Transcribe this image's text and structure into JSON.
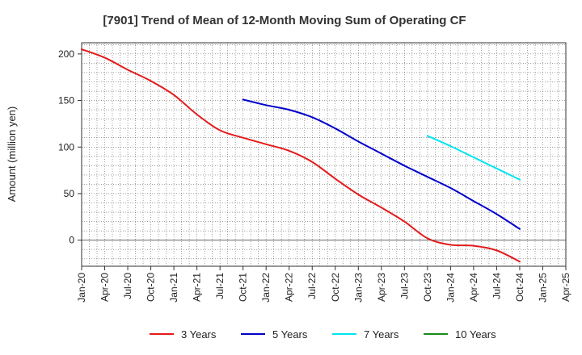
{
  "chart_data": {
    "type": "line",
    "title": "[7901]  Trend of Mean of 12-Month Moving Sum of Operating CF",
    "xlabel": "",
    "ylabel": "Amount (million yen)",
    "ylim": [
      -28,
      212
    ],
    "yticks": [
      0,
      50,
      100,
      150,
      200
    ],
    "x_tick_labels": [
      "Jan-20",
      "Apr-20",
      "Jul-20",
      "Oct-20",
      "Jan-21",
      "Apr-21",
      "Jul-21",
      "Oct-21",
      "Jan-22",
      "Apr-22",
      "Jul-22",
      "Oct-22",
      "Jan-23",
      "Apr-23",
      "Jul-23",
      "Oct-23",
      "Jan-24",
      "Apr-24",
      "Jul-24",
      "Oct-24",
      "Jan-25",
      "Apr-25"
    ],
    "grid": true,
    "legend_position": "bottom",
    "series": [
      {
        "name": "3 Years",
        "color": "#e31a1c",
        "x": [
          "Jan-20",
          "Apr-20",
          "Jul-20",
          "Oct-20",
          "Jan-21",
          "Apr-21",
          "Jul-21",
          "Oct-21",
          "Jan-22",
          "Apr-22",
          "Jul-22",
          "Oct-22",
          "Jan-23",
          "Apr-23",
          "Jul-23",
          "Oct-23",
          "Jan-24",
          "Apr-24",
          "Jul-24",
          "Oct-24"
        ],
        "values": [
          205,
          196,
          183,
          171,
          156,
          135,
          118,
          110,
          103,
          96,
          84,
          66,
          49,
          35,
          20,
          2,
          -5,
          -6,
          -11,
          -23
        ]
      },
      {
        "name": "5 Years",
        "color": "#0000cc",
        "x": [
          "Oct-21",
          "Jan-22",
          "Apr-22",
          "Jul-22",
          "Oct-22",
          "Jan-23",
          "Apr-23",
          "Jul-23",
          "Oct-23",
          "Jan-24",
          "Apr-24",
          "Jul-24",
          "Oct-24"
        ],
        "values": [
          151,
          145,
          140,
          132,
          120,
          106,
          93,
          80,
          68,
          56,
          42,
          28,
          12
        ]
      },
      {
        "name": "7 Years",
        "color": "#00e5ee",
        "x": [
          "Oct-23",
          "Jan-24",
          "Apr-24",
          "Jul-24",
          "Oct-24"
        ],
        "values": [
          112,
          101,
          89,
          77,
          65
        ]
      },
      {
        "name": "10 Years",
        "color": "#1a8a1a",
        "x": [],
        "values": []
      }
    ]
  }
}
